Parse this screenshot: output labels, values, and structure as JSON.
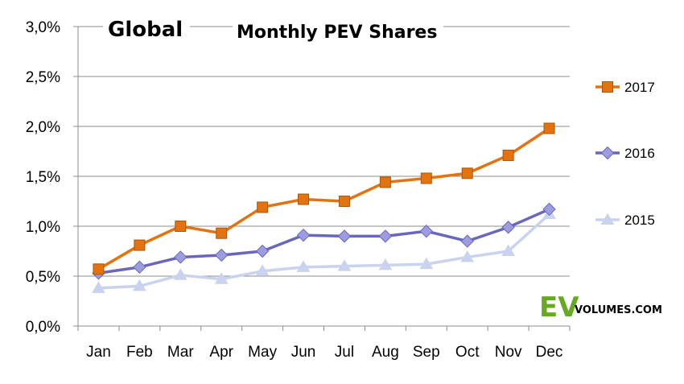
{
  "chart_data": {
    "type": "line",
    "region_label": "Global",
    "title": "Monthly PEV Shares",
    "categories": [
      "Jan",
      "Feb",
      "Mar",
      "Apr",
      "May",
      "Jun",
      "Jul",
      "Aug",
      "Sep",
      "Oct",
      "Nov",
      "Dec"
    ],
    "y_ticks": [
      "0,0%",
      "0,5%",
      "1,0%",
      "1,5%",
      "2,0%",
      "2,5%",
      "3,0%"
    ],
    "ylim": [
      0,
      3.0
    ],
    "grid": true,
    "legend_position": "right",
    "series": [
      {
        "name": "2017",
        "color": "#e3730f",
        "marker": "square",
        "values": [
          0.57,
          0.81,
          1.0,
          0.93,
          1.19,
          1.27,
          1.25,
          1.44,
          1.48,
          1.53,
          1.71,
          1.98
        ]
      },
      {
        "name": "2016",
        "color": "#6a66bd",
        "marker": "diamond",
        "values": [
          0.53,
          0.59,
          0.69,
          0.71,
          0.75,
          0.91,
          0.9,
          0.9,
          0.95,
          0.85,
          0.99,
          1.17
        ]
      },
      {
        "name": "2015",
        "color": "#c9d3ee",
        "marker": "triangle",
        "values": [
          0.38,
          0.4,
          0.51,
          0.47,
          0.55,
          0.59,
          0.6,
          0.61,
          0.62,
          0.69,
          0.75,
          1.12
        ]
      }
    ]
  },
  "logo": {
    "ev": "EV",
    "sub": "VOLUMES.COM"
  }
}
